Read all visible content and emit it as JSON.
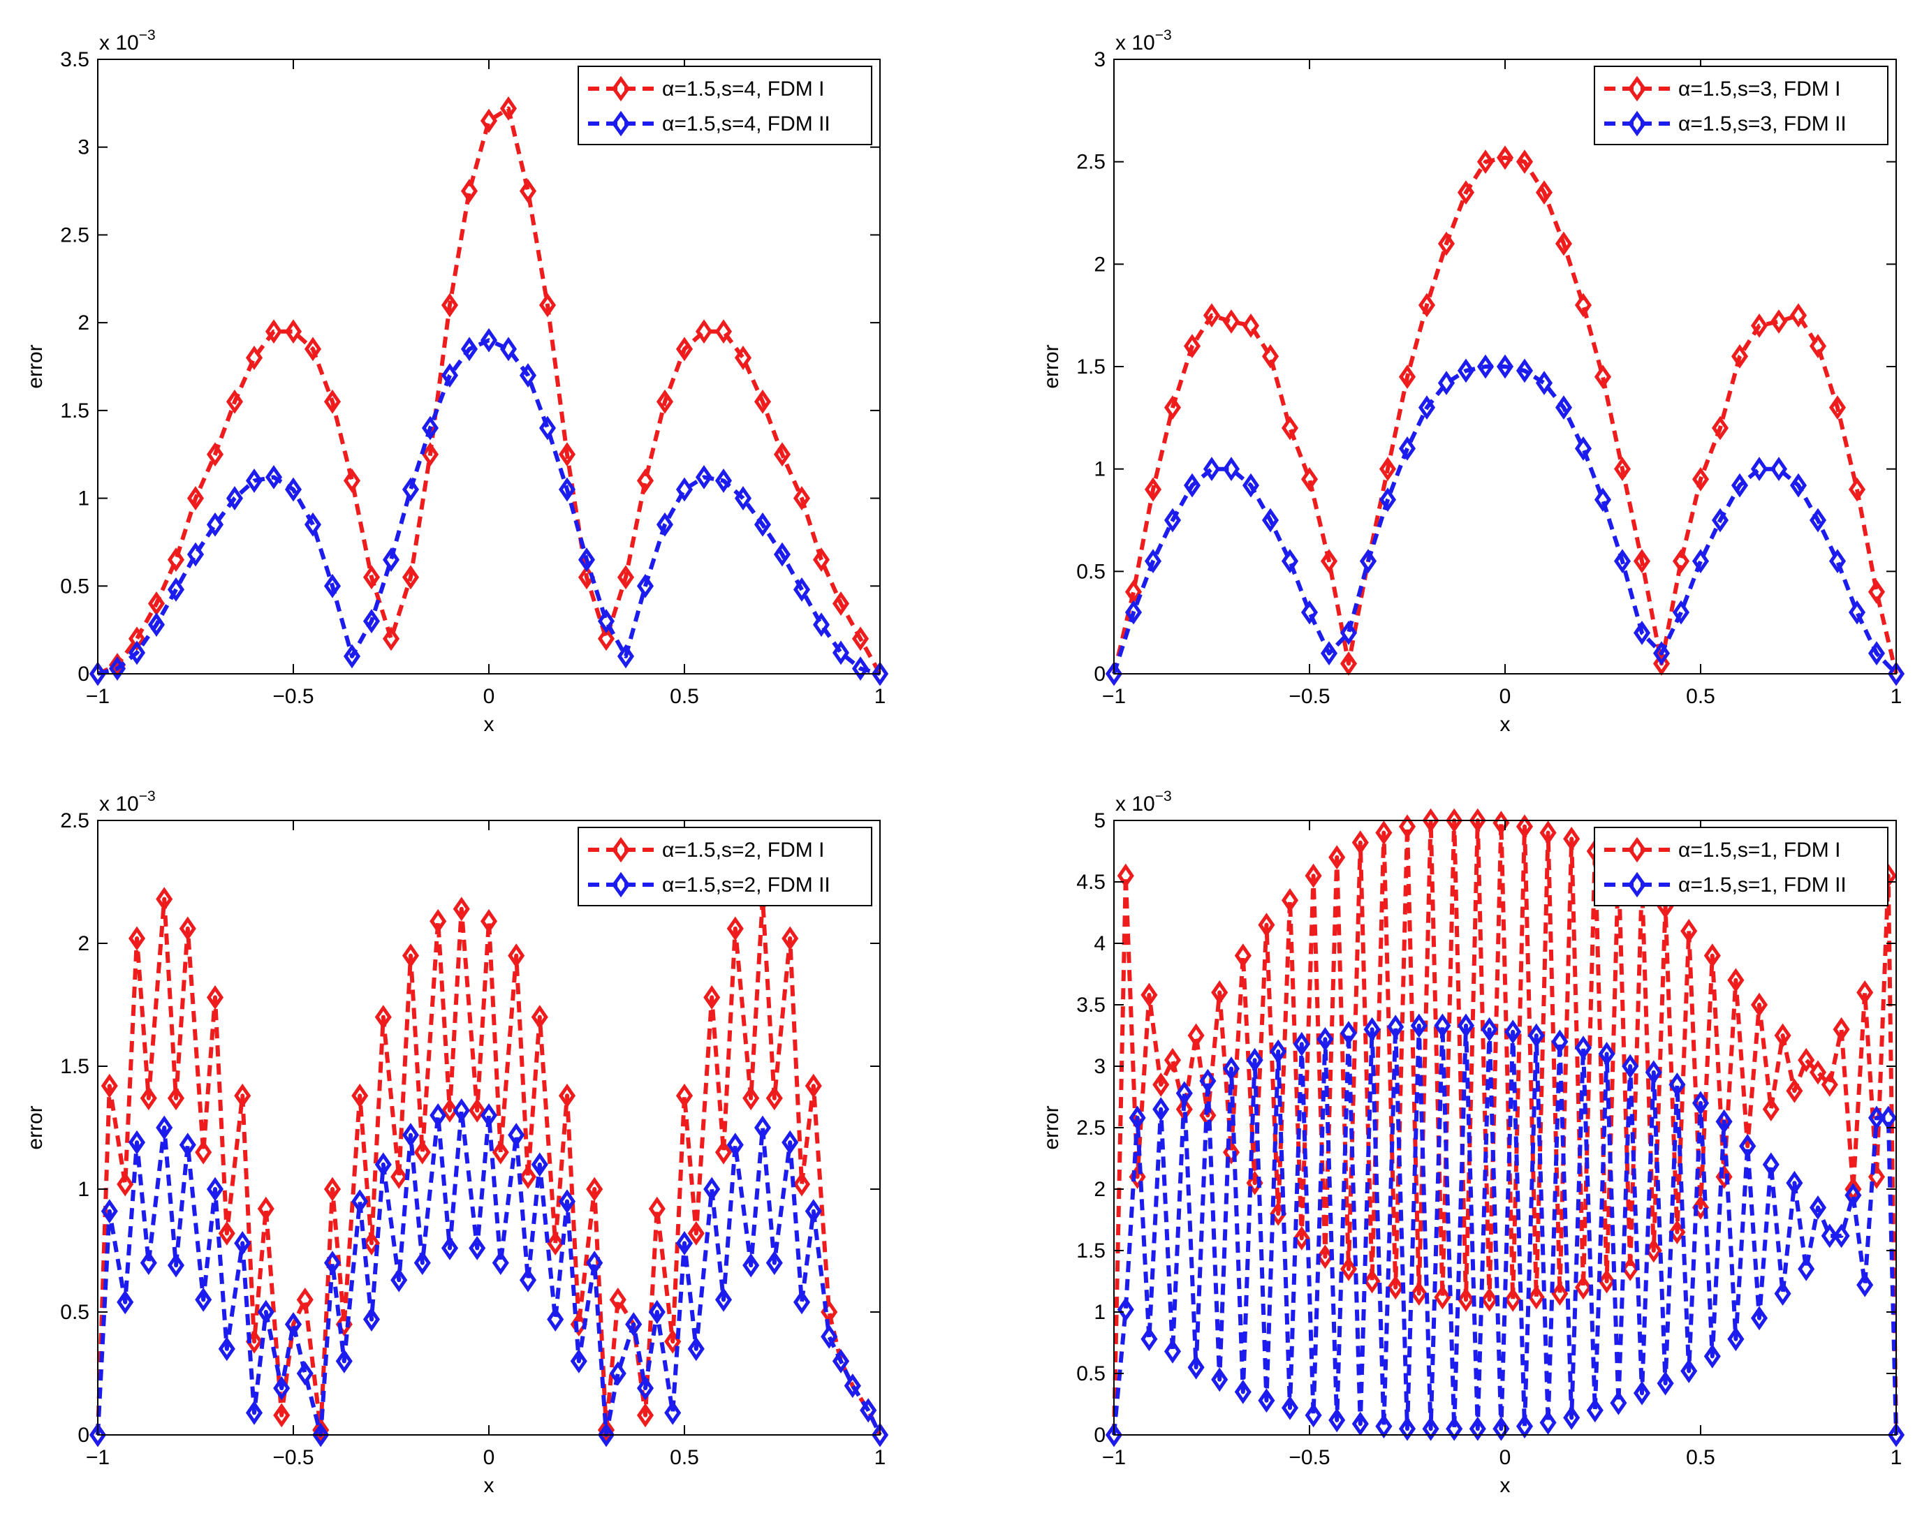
{
  "chart_data": [
    {
      "type": "line",
      "xlabel": "x",
      "ylabel": "error",
      "xlim": [
        -1,
        1
      ],
      "ylim": [
        0,
        3.5
      ],
      "xticks": [
        -1,
        -0.5,
        0,
        0.5,
        1
      ],
      "xtick_labels": [
        "−1",
        "−0.5",
        "0",
        "0.5",
        "1"
      ],
      "yticks": [
        0,
        0.5,
        1,
        1.5,
        2,
        2.5,
        3,
        3.5
      ],
      "ytick_labels": [
        "0",
        "0.5",
        "1",
        "1.5",
        "2",
        "2.5",
        "3",
        "3.5"
      ],
      "y_scale_label": {
        "base": "x 10",
        "exp": "−3"
      },
      "legend_position": "top-right",
      "series": [
        {
          "name": "α=1.5,s=4, FDM I",
          "color": "#ee1c1c",
          "marker": "diamond",
          "linestyle": "dashed",
          "x": [
            -1,
            -0.95,
            -0.9,
            -0.85,
            -0.8,
            -0.75,
            -0.7,
            -0.65,
            -0.6,
            -0.55,
            -0.5,
            -0.45,
            -0.4,
            -0.35,
            -0.3,
            -0.25,
            -0.2,
            -0.15,
            -0.1,
            -0.05,
            0,
            0.05,
            0.1,
            0.15,
            0.2,
            0.25,
            0.3,
            0.35,
            0.4,
            0.45,
            0.5,
            0.55,
            0.6,
            0.65,
            0.7,
            0.75,
            0.8,
            0.85,
            0.9,
            0.95,
            1
          ],
          "y": [
            0,
            0.05,
            0.2,
            0.4,
            0.65,
            1.0,
            1.25,
            1.55,
            1.8,
            1.95,
            1.95,
            1.85,
            1.55,
            1.1,
            0.55,
            0.2,
            0.55,
            1.25,
            2.1,
            2.75,
            3.15,
            3.22,
            2.75,
            2.1,
            1.25,
            0.55,
            0.2,
            0.55,
            1.1,
            1.55,
            1.85,
            1.95,
            1.95,
            1.8,
            1.55,
            1.25,
            1.0,
            0.65,
            0.4,
            0.2,
            0
          ]
        },
        {
          "name": "α=1.5,s=4, FDM II",
          "color": "#1c1cee",
          "marker": "diamond",
          "linestyle": "dashed",
          "x": [
            -1,
            -0.95,
            -0.9,
            -0.85,
            -0.8,
            -0.75,
            -0.7,
            -0.65,
            -0.6,
            -0.55,
            -0.5,
            -0.45,
            -0.4,
            -0.35,
            -0.3,
            -0.25,
            -0.2,
            -0.15,
            -0.1,
            -0.05,
            0,
            0.05,
            0.1,
            0.15,
            0.2,
            0.25,
            0.3,
            0.35,
            0.4,
            0.45,
            0.5,
            0.55,
            0.6,
            0.65,
            0.7,
            0.75,
            0.8,
            0.85,
            0.9,
            0.95,
            1
          ],
          "y": [
            0,
            0.03,
            0.12,
            0.28,
            0.48,
            0.68,
            0.85,
            1.0,
            1.1,
            1.12,
            1.05,
            0.85,
            0.5,
            0.1,
            0.3,
            0.65,
            1.05,
            1.4,
            1.7,
            1.85,
            1.9,
            1.85,
            1.7,
            1.4,
            1.05,
            0.65,
            0.3,
            0.1,
            0.5,
            0.85,
            1.05,
            1.12,
            1.1,
            1.0,
            0.85,
            0.68,
            0.48,
            0.28,
            0.12,
            0.03,
            0
          ]
        }
      ]
    },
    {
      "type": "line",
      "xlabel": "x",
      "ylabel": "error",
      "xlim": [
        -1,
        1
      ],
      "ylim": [
        0,
        3
      ],
      "xticks": [
        -1,
        -0.5,
        0,
        0.5,
        1
      ],
      "xtick_labels": [
        "−1",
        "−0.5",
        "0",
        "0.5",
        "1"
      ],
      "yticks": [
        0,
        0.5,
        1,
        1.5,
        2,
        2.5,
        3
      ],
      "ytick_labels": [
        "0",
        "0.5",
        "1",
        "1.5",
        "2",
        "2.5",
        "3"
      ],
      "y_scale_label": {
        "base": "x 10",
        "exp": "−3"
      },
      "legend_position": "top-right",
      "series": [
        {
          "name": "α=1.5,s=3, FDM I",
          "color": "#ee1c1c",
          "marker": "diamond",
          "linestyle": "dashed",
          "x": [
            -1,
            -0.95,
            -0.9,
            -0.85,
            -0.8,
            -0.75,
            -0.7,
            -0.65,
            -0.6,
            -0.55,
            -0.5,
            -0.45,
            -0.4,
            -0.35,
            -0.3,
            -0.25,
            -0.2,
            -0.15,
            -0.1,
            -0.05,
            0,
            0.05,
            0.1,
            0.15,
            0.2,
            0.25,
            0.3,
            0.35,
            0.4,
            0.45,
            0.5,
            0.55,
            0.6,
            0.65,
            0.7,
            0.75,
            0.8,
            0.85,
            0.9,
            0.95,
            1
          ],
          "y": [
            0,
            0.4,
            0.9,
            1.3,
            1.6,
            1.75,
            1.72,
            1.7,
            1.55,
            1.2,
            0.95,
            0.55,
            0.05,
            0.55,
            1.0,
            1.45,
            1.8,
            2.1,
            2.35,
            2.5,
            2.52,
            2.5,
            2.35,
            2.1,
            1.8,
            1.45,
            1.0,
            0.55,
            0.05,
            0.55,
            0.95,
            1.2,
            1.55,
            1.7,
            1.72,
            1.75,
            1.6,
            1.3,
            0.9,
            0.4,
            0
          ]
        },
        {
          "name": "α=1.5,s=3, FDM II",
          "color": "#1c1cee",
          "marker": "diamond",
          "linestyle": "dashed",
          "x": [
            -1,
            -0.95,
            -0.9,
            -0.85,
            -0.8,
            -0.75,
            -0.7,
            -0.65,
            -0.6,
            -0.55,
            -0.5,
            -0.45,
            -0.4,
            -0.35,
            -0.3,
            -0.25,
            -0.2,
            -0.15,
            -0.1,
            -0.05,
            0,
            0.05,
            0.1,
            0.15,
            0.2,
            0.25,
            0.3,
            0.35,
            0.4,
            0.45,
            0.5,
            0.55,
            0.6,
            0.65,
            0.7,
            0.75,
            0.8,
            0.85,
            0.9,
            0.95,
            1
          ],
          "y": [
            0,
            0.3,
            0.55,
            0.75,
            0.92,
            1.0,
            1.0,
            0.92,
            0.75,
            0.55,
            0.3,
            0.1,
            0.2,
            0.55,
            0.85,
            1.1,
            1.3,
            1.42,
            1.48,
            1.5,
            1.5,
            1.48,
            1.42,
            1.3,
            1.1,
            0.85,
            0.55,
            0.2,
            0.1,
            0.3,
            0.55,
            0.75,
            0.92,
            1.0,
            1.0,
            0.92,
            0.75,
            0.55,
            0.3,
            0.1,
            0
          ]
        }
      ]
    },
    {
      "type": "line",
      "xlabel": "x",
      "ylabel": "error",
      "xlim": [
        -1,
        1
      ],
      "ylim": [
        0,
        2.5
      ],
      "xticks": [
        -1,
        -0.5,
        0,
        0.5,
        1
      ],
      "xtick_labels": [
        "−1",
        "−0.5",
        "0",
        "0.5",
        "1"
      ],
      "yticks": [
        0,
        0.5,
        1,
        1.5,
        2,
        2.5
      ],
      "ytick_labels": [
        "0",
        "0.5",
        "1",
        "1.5",
        "2",
        "2.5"
      ],
      "y_scale_label": {
        "base": "x 10",
        "exp": "−3"
      },
      "legend_position": "top-right",
      "series": [
        {
          "name": "α=1.5,s=2, FDM I",
          "color": "#ee1c1c",
          "marker": "diamond",
          "linestyle": "dashed",
          "x": [
            -1,
            -0.97,
            -0.93,
            -0.9,
            -0.87,
            -0.83,
            -0.8,
            -0.77,
            -0.73,
            -0.7,
            -0.67,
            -0.63,
            -0.6,
            -0.57,
            -0.53,
            -0.5,
            -0.47,
            -0.43,
            -0.4,
            -0.37,
            -0.33,
            -0.3,
            -0.27,
            -0.23,
            -0.2,
            -0.17,
            -0.13,
            -0.1,
            -0.07,
            -0.03,
            0,
            0.03,
            0.07,
            0.1,
            0.13,
            0.17,
            0.2,
            0.23,
            0.27,
            0.3,
            0.33,
            0.37,
            0.4,
            0.43,
            0.47,
            0.5,
            0.53,
            0.57,
            0.6,
            0.63,
            0.67,
            0.7,
            0.73,
            0.77,
            0.8,
            0.83,
            0.87,
            0.9,
            0.93,
            0.97,
            1
          ],
          "y": [
            0,
            1.42,
            1.02,
            2.02,
            1.37,
            2.18,
            1.37,
            2.06,
            1.15,
            1.78,
            0.82,
            1.38,
            0.38,
            0.92,
            0.08,
            0.45,
            0.55,
            0.02,
            1.0,
            0.45,
            1.38,
            0.78,
            1.7,
            1.05,
            1.95,
            1.15,
            2.09,
            1.32,
            2.14,
            1.32,
            2.09,
            1.15,
            1.95,
            1.05,
            1.7,
            0.78,
            1.38,
            0.45,
            1.0,
            0.02,
            0.55,
            0.45,
            0.08,
            0.92,
            0.38,
            1.38,
            0.82,
            1.78,
            1.15,
            2.06,
            1.37,
            2.18,
            1.37,
            2.02,
            1.02,
            1.42,
            0.5,
            0.3,
            0.2,
            0.1,
            0
          ]
        },
        {
          "name": "α=1.5,s=2, FDM II",
          "color": "#1c1cee",
          "marker": "diamond",
          "linestyle": "dashed",
          "x": [
            -1,
            -0.97,
            -0.93,
            -0.9,
            -0.87,
            -0.83,
            -0.8,
            -0.77,
            -0.73,
            -0.7,
            -0.67,
            -0.63,
            -0.6,
            -0.57,
            -0.53,
            -0.5,
            -0.47,
            -0.43,
            -0.4,
            -0.37,
            -0.33,
            -0.3,
            -0.27,
            -0.23,
            -0.2,
            -0.17,
            -0.13,
            -0.1,
            -0.07,
            -0.03,
            0,
            0.03,
            0.07,
            0.1,
            0.13,
            0.17,
            0.2,
            0.23,
            0.27,
            0.3,
            0.33,
            0.37,
            0.4,
            0.43,
            0.47,
            0.5,
            0.53,
            0.57,
            0.6,
            0.63,
            0.67,
            0.7,
            0.73,
            0.77,
            0.8,
            0.83,
            0.87,
            0.9,
            0.93,
            0.97,
            1
          ],
          "y": [
            0,
            0.91,
            0.54,
            1.19,
            0.7,
            1.25,
            0.69,
            1.18,
            0.55,
            1.0,
            0.35,
            0.78,
            0.09,
            0.5,
            0.19,
            0.45,
            0.25,
            0.0,
            0.7,
            0.3,
            0.95,
            0.47,
            1.1,
            0.63,
            1.22,
            0.7,
            1.3,
            0.76,
            1.32,
            0.76,
            1.3,
            0.7,
            1.22,
            0.63,
            1.1,
            0.47,
            0.95,
            0.3,
            0.7,
            0.0,
            0.25,
            0.45,
            0.19,
            0.5,
            0.09,
            0.78,
            0.35,
            1.0,
            0.55,
            1.18,
            0.69,
            1.25,
            0.7,
            1.19,
            0.54,
            0.91,
            0.4,
            0.3,
            0.2,
            0.1,
            0
          ]
        }
      ]
    },
    {
      "type": "line",
      "xlabel": "x",
      "ylabel": "error",
      "xlim": [
        -1,
        1
      ],
      "ylim": [
        0,
        5
      ],
      "xticks": [
        -1,
        -0.5,
        0,
        0.5,
        1
      ],
      "xtick_labels": [
        "−1",
        "−0.5",
        "0",
        "0.5",
        "1"
      ],
      "yticks": [
        0,
        0.5,
        1,
        1.5,
        2,
        2.5,
        3,
        3.5,
        4,
        4.5,
        5
      ],
      "ytick_labels": [
        "0",
        "0.5",
        "1",
        "1.5",
        "2",
        "2.5",
        "3",
        "3.5",
        "4",
        "4.5",
        "5"
      ],
      "y_scale_label": {
        "base": "x 10",
        "exp": "−3"
      },
      "legend_position": "top-right",
      "series": [
        {
          "name": "α=1.5,s=1, FDM I",
          "color": "#ee1c1c",
          "marker": "diamond",
          "linestyle": "dashed",
          "x": [
            -1,
            -0.97,
            -0.94,
            -0.91,
            -0.88,
            -0.85,
            -0.82,
            -0.79,
            -0.76,
            -0.73,
            -0.7,
            -0.67,
            -0.64,
            -0.61,
            -0.58,
            -0.55,
            -0.52,
            -0.49,
            -0.46,
            -0.43,
            -0.4,
            -0.37,
            -0.34,
            -0.31,
            -0.28,
            -0.25,
            -0.22,
            -0.19,
            -0.16,
            -0.13,
            -0.1,
            -0.07,
            -0.04,
            -0.01,
            0.02,
            0.05,
            0.08,
            0.11,
            0.14,
            0.17,
            0.2,
            0.23,
            0.26,
            0.29,
            0.32,
            0.35,
            0.38,
            0.41,
            0.44,
            0.47,
            0.5,
            0.53,
            0.56,
            0.59,
            0.62,
            0.65,
            0.68,
            0.71,
            0.74,
            0.77,
            0.8,
            0.83,
            0.86,
            0.89,
            0.92,
            0.95,
            0.98,
            1
          ],
          "y": [
            0,
            4.55,
            2.1,
            3.58,
            2.85,
            3.05,
            2.65,
            3.25,
            2.6,
            3.6,
            2.3,
            3.9,
            2.05,
            4.15,
            1.8,
            4.35,
            1.6,
            4.55,
            1.45,
            4.7,
            1.35,
            4.82,
            1.25,
            4.9,
            1.2,
            4.95,
            1.15,
            5.0,
            1.12,
            5.0,
            1.1,
            5.0,
            1.1,
            4.98,
            1.1,
            4.95,
            1.12,
            4.9,
            1.15,
            4.85,
            1.2,
            4.75,
            1.25,
            4.65,
            1.35,
            4.5,
            1.5,
            4.3,
            1.65,
            4.1,
            1.85,
            3.9,
            2.1,
            3.7,
            2.35,
            3.5,
            2.65,
            3.25,
            2.8,
            3.05,
            2.95,
            2.85,
            3.3,
            2.0,
            3.6,
            2.1,
            4.55,
            0
          ]
        },
        {
          "name": "α=1.5,s=1, FDM II",
          "color": "#1c1cee",
          "marker": "diamond",
          "linestyle": "dashed",
          "x": [
            -1,
            -0.97,
            -0.94,
            -0.91,
            -0.88,
            -0.85,
            -0.82,
            -0.79,
            -0.76,
            -0.73,
            -0.7,
            -0.67,
            -0.64,
            -0.61,
            -0.58,
            -0.55,
            -0.52,
            -0.49,
            -0.46,
            -0.43,
            -0.4,
            -0.37,
            -0.34,
            -0.31,
            -0.28,
            -0.25,
            -0.22,
            -0.19,
            -0.16,
            -0.13,
            -0.1,
            -0.07,
            -0.04,
            -0.01,
            0.02,
            0.05,
            0.08,
            0.11,
            0.14,
            0.17,
            0.2,
            0.23,
            0.26,
            0.29,
            0.32,
            0.35,
            0.38,
            0.41,
            0.44,
            0.47,
            0.5,
            0.53,
            0.56,
            0.59,
            0.62,
            0.65,
            0.68,
            0.71,
            0.74,
            0.77,
            0.8,
            0.83,
            0.86,
            0.89,
            0.92,
            0.95,
            0.98,
            1
          ],
          "y": [
            0,
            1.02,
            2.58,
            0.78,
            2.65,
            0.68,
            2.78,
            0.55,
            2.88,
            0.45,
            2.98,
            0.35,
            3.05,
            0.28,
            3.12,
            0.22,
            3.18,
            0.16,
            3.22,
            0.12,
            3.27,
            0.09,
            3.3,
            0.07,
            3.32,
            0.05,
            3.33,
            0.05,
            3.33,
            0.05,
            3.33,
            0.05,
            3.3,
            0.05,
            3.28,
            0.07,
            3.25,
            0.1,
            3.2,
            0.14,
            3.15,
            0.2,
            3.1,
            0.26,
            3.0,
            0.34,
            2.95,
            0.42,
            2.85,
            0.52,
            2.7,
            0.64,
            2.55,
            0.78,
            2.35,
            0.95,
            2.2,
            1.15,
            2.05,
            1.35,
            1.85,
            1.62,
            1.62,
            1.95,
            1.22,
            2.58,
            2.58,
            0
          ]
        }
      ]
    }
  ]
}
